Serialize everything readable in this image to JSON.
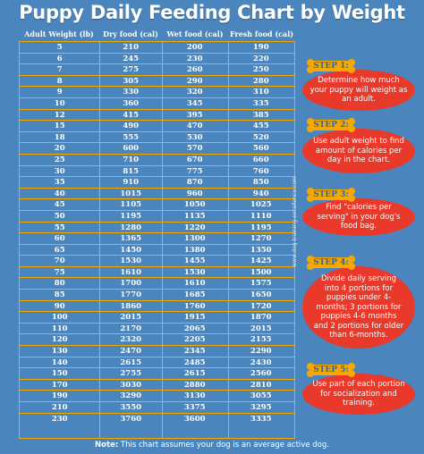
{
  "title": "Puppy Daily Feeding Chart by Weight",
  "table": {
    "headers": [
      "Adult Weight (lb)",
      "Dry food (cal)",
      "Wet food (cal)",
      "Fresh food (cal)"
    ],
    "rows": [
      [
        "5",
        "210",
        "200",
        "190"
      ],
      [
        "6",
        "245",
        "230",
        "220"
      ],
      [
        "7",
        "275",
        "260",
        "250"
      ],
      [
        "8",
        "305",
        "290",
        "280"
      ],
      [
        "9",
        "330",
        "320",
        "310"
      ],
      [
        "10",
        "360",
        "345",
        "335"
      ],
      [
        "12",
        "415",
        "395",
        "385"
      ],
      [
        "15",
        "490",
        "470",
        "455"
      ],
      [
        "18",
        "555",
        "530",
        "520"
      ],
      [
        "20",
        "600",
        "570",
        "560"
      ],
      [
        "25",
        "710",
        "670",
        "660"
      ],
      [
        "30",
        "815",
        "775",
        "760"
      ],
      [
        "35",
        "910",
        "870",
        "850"
      ],
      [
        "40",
        "1015",
        "960",
        "940"
      ],
      [
        "45",
        "1105",
        "1050",
        "1025"
      ],
      [
        "50",
        "1195",
        "1135",
        "1110"
      ],
      [
        "55",
        "1280",
        "1220",
        "1195"
      ],
      [
        "60",
        "1365",
        "1300",
        "1270"
      ],
      [
        "65",
        "1450",
        "1380",
        "1350"
      ],
      [
        "70",
        "1530",
        "1455",
        "1425"
      ],
      [
        "75",
        "1610",
        "1530",
        "1500"
      ],
      [
        "80",
        "1700",
        "1610",
        "1575"
      ],
      [
        "85",
        "1770",
        "1685",
        "1650"
      ],
      [
        "90",
        "1860",
        "1760",
        "1720"
      ],
      [
        "100",
        "2015",
        "1915",
        "1870"
      ],
      [
        "110",
        "2170",
        "2065",
        "2015"
      ],
      [
        "120",
        "2320",
        "2205",
        "2155"
      ],
      [
        "130",
        "2470",
        "2345",
        "2290"
      ],
      [
        "140",
        "2615",
        "2485",
        "2430"
      ],
      [
        "150",
        "2755",
        "2615",
        "2560"
      ],
      [
        "170",
        "3030",
        "2880",
        "2810"
      ],
      [
        "190",
        "3290",
        "3130",
        "3055"
      ],
      [
        "210",
        "3550",
        "3375",
        "3295"
      ],
      [
        "230",
        "3760",
        "3600",
        "3335"
      ]
    ]
  },
  "side_text": "www.dog-training-excellence.com",
  "note": {
    "label": "Note:",
    "text": " This chart assumes your dog is an average active dog."
  },
  "steps": [
    {
      "label": "STEP 1:",
      "text": "Determine how much your puppy will weight as an adult."
    },
    {
      "label": "STEP 2:",
      "text": "Use adult weight to find amount of calories per day in the chart."
    },
    {
      "label": "STEP 3:",
      "text": "Find \"calories per serving\" in your dog's food bag."
    },
    {
      "label": "STEP 4:",
      "text": "Divide daily serving into 4 portions for puppies under 4-months; 3 portions for puppies 4-6 months and 2 portions for older than 6-months."
    },
    {
      "label": "STEP 5:",
      "text": "Use part of each portion for socialization and training."
    }
  ],
  "colors": {
    "background": "#4a86bd",
    "grid": "#f2a900",
    "bone": "#f5a800",
    "bubble": "#e8392a"
  }
}
